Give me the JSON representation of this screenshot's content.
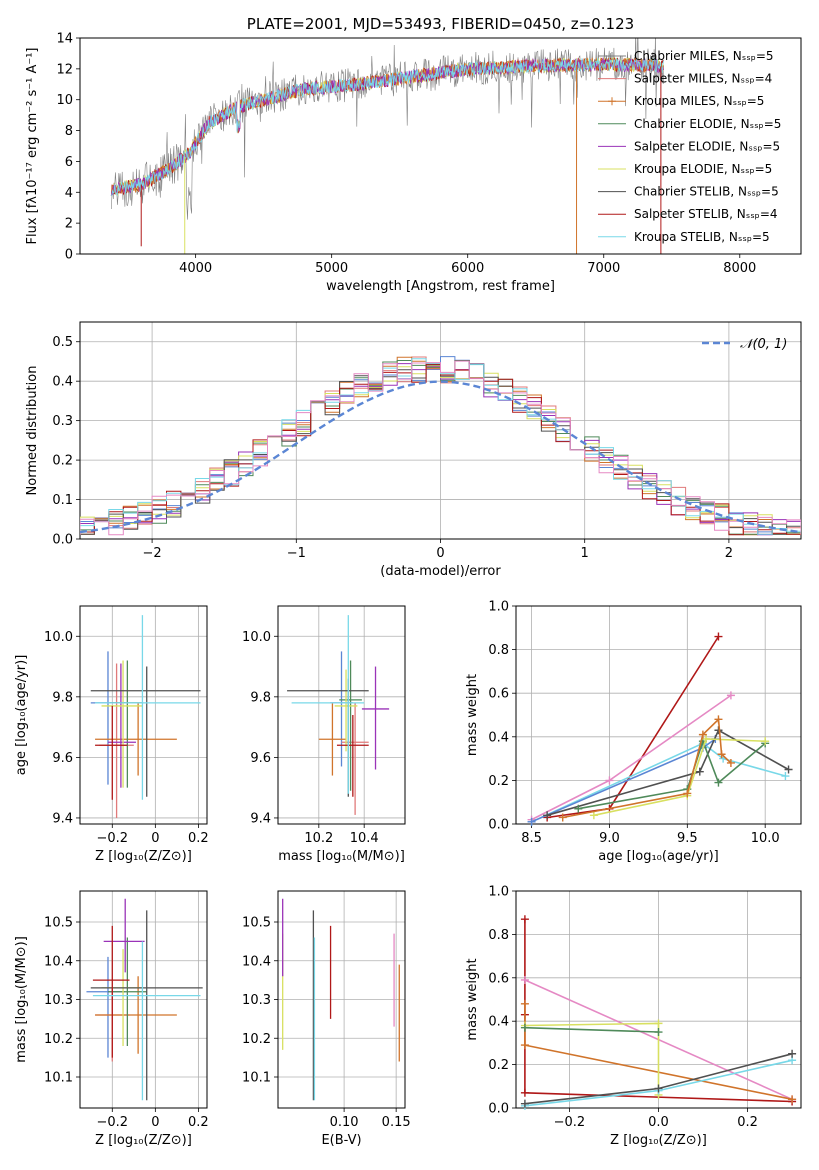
{
  "palette": {
    "chabrier_miles": "#5b86d4",
    "salpeter_miles": "#e07a7a",
    "kroupa_miles": "#d0742b",
    "chabrier_elodie": "#4f8a5a",
    "salpeter_elodie": "#9a33b8",
    "kroupa_elodie": "#d8e060",
    "chabrier_stelib": "#505050",
    "salpeter_stelib": "#b01818",
    "kroupa_stelib": "#78d8e8",
    "gray": "#808080",
    "pink": "#e589c4",
    "dashed": "#5b86d4"
  },
  "chart_data": [
    {
      "id": "spectrum",
      "type": "line",
      "title": "PLATE=2001, MJD=53493, FIBERID=0450, z=0.123",
      "xlabel": "wavelength [Angstrom, rest frame]",
      "ylabel": "Flux [fλ10⁻¹⁷ erg cm⁻² s⁻¹ A⁻¹]",
      "xlim": [
        3150,
        8450
      ],
      "ylim": [
        0,
        14
      ],
      "xticks": [
        4000,
        5000,
        6000,
        7000,
        8000
      ],
      "yticks": [
        0,
        2,
        4,
        6,
        8,
        10,
        12,
        14
      ],
      "grid": false,
      "legend_position": "right",
      "legend": [
        "Chabrier MILES, Nₛₛₚ=5",
        "Salpeter MILES, Nₛₛₚ=4",
        "Kroupa MILES, Nₛₛₚ=5",
        "Chabrier ELODIE, Nₛₛₚ=5",
        "Salpeter ELODIE, Nₛₛₚ=5",
        "Kroupa ELODIE, Nₛₛₚ=5",
        "Chabrier STELIB, Nₛₛₚ=5",
        "Salpeter STELIB, Nₛₛₚ=4",
        "Kroupa STELIB, Nₛₛₚ=5"
      ],
      "continuum_anchors": {
        "x": [
          3400,
          3600,
          3800,
          3950,
          4100,
          4300,
          4500,
          4800,
          5200,
          5600,
          6000,
          6500,
          7000,
          7400,
          7600,
          7800,
          8000,
          8200
        ],
        "y": [
          4.2,
          4.5,
          5.5,
          6.5,
          8.5,
          9.5,
          10.0,
          10.7,
          11.0,
          11.5,
          12.0,
          12.2,
          12.3,
          12.2,
          11.8,
          11.6,
          11.4,
          11.3
        ]
      }
    },
    {
      "id": "residuals",
      "type": "histogram",
      "xlabel": "(data-model)/error",
      "ylabel": "Normed distribution",
      "xlim": [
        -2.5,
        2.5
      ],
      "ylim": [
        0,
        0.55
      ],
      "xticks": [
        -2,
        -1,
        0,
        1,
        2
      ],
      "yticks": [
        0.0,
        0.1,
        0.2,
        0.3,
        0.4,
        0.5
      ],
      "grid": true,
      "legend_position": "top-right",
      "legend": [
        "𝒩(0, 1)"
      ],
      "bin_width": 0.1
    },
    {
      "id": "age-vs-Z",
      "type": "scatter",
      "xlabel": "Z [log₁₀(Z/Z⊙)]",
      "ylabel": "age  [log₁₀(age/yr)]",
      "xlim": [
        -0.35,
        0.24
      ],
      "ylim": [
        9.38,
        10.1
      ],
      "xticks": [
        -0.2,
        0.0,
        0.2
      ],
      "yticks": [
        9.4,
        9.6,
        9.8,
        10.0
      ],
      "grid": true,
      "points": [
        {
          "x": -0.22,
          "y": 9.78,
          "xerr": [
            0.08,
            0.08
          ],
          "yerr": [
            0.27,
            0.17
          ],
          "color": "chabrier_miles"
        },
        {
          "x": -0.18,
          "y": 9.64,
          "xerr": [
            0.08,
            0.08
          ],
          "yerr": [
            0.24,
            0.27
          ],
          "color": "salpeter_miles"
        },
        {
          "x": -0.08,
          "y": 9.66,
          "xerr": [
            0.2,
            0.18
          ],
          "yerr": [
            0.12,
            0.12
          ],
          "color": "kroupa_miles"
        },
        {
          "x": -0.13,
          "y": 9.78,
          "xerr": [
            0.08,
            0.07
          ],
          "yerr": [
            0.28,
            0.14
          ],
          "color": "chabrier_elodie"
        },
        {
          "x": -0.16,
          "y": 9.65,
          "xerr": [
            0.06,
            0.07
          ],
          "yerr": [
            0.15,
            0.26
          ],
          "color": "salpeter_elodie"
        },
        {
          "x": -0.15,
          "y": 9.77,
          "xerr": [
            0.1,
            0.09
          ],
          "yerr": [
            0.27,
            0.15
          ],
          "color": "kroupa_elodie"
        },
        {
          "x": -0.04,
          "y": 9.82,
          "xerr": [
            0.26,
            0.25
          ],
          "yerr": [
            0.35,
            0.08
          ],
          "color": "chabrier_stelib"
        },
        {
          "x": -0.2,
          "y": 9.64,
          "xerr": [
            0.08,
            0.07
          ],
          "yerr": [
            0.18,
            0.13
          ],
          "color": "salpeter_stelib"
        },
        {
          "x": -0.06,
          "y": 9.78,
          "xerr": [
            0.22,
            0.27
          ],
          "yerr": [
            0.32,
            0.29
          ],
          "color": "kroupa_stelib"
        }
      ]
    },
    {
      "id": "age-vs-mass",
      "type": "scatter",
      "xlabel": "mass [log₁₀(M/M⊙)]",
      "ylabel": "",
      "xlim": [
        10.02,
        10.58
      ],
      "ylim": [
        9.38,
        10.1
      ],
      "xticks": [
        10.2,
        10.4
      ],
      "yticks": [
        9.4,
        9.6,
        9.8,
        10.0
      ],
      "grid": true,
      "points": [
        {
          "x": 10.3,
          "y": 9.78,
          "xerr": [
            0.05,
            0.05
          ],
          "yerr": [
            0.21,
            0.17
          ],
          "color": "chabrier_miles"
        },
        {
          "x": 10.36,
          "y": 9.65,
          "xerr": [
            0.06,
            0.06
          ],
          "yerr": [
            0.24,
            0.13
          ],
          "color": "salpeter_miles"
        },
        {
          "x": 10.26,
          "y": 9.66,
          "xerr": [
            0.06,
            0.06
          ],
          "yerr": [
            0.12,
            0.12
          ],
          "color": "kroupa_miles"
        },
        {
          "x": 10.34,
          "y": 9.79,
          "xerr": [
            0.05,
            0.05
          ],
          "yerr": [
            0.3,
            0.13
          ],
          "color": "chabrier_elodie"
        },
        {
          "x": 10.45,
          "y": 9.76,
          "xerr": [
            0.06,
            0.06
          ],
          "yerr": [
            0.2,
            0.14
          ],
          "color": "salpeter_elodie"
        },
        {
          "x": 10.32,
          "y": 9.77,
          "xerr": [
            0.05,
            0.05
          ],
          "yerr": [
            0.15,
            0.12
          ],
          "color": "kroupa_elodie"
        },
        {
          "x": 10.33,
          "y": 9.82,
          "xerr": [
            0.27,
            0.09
          ],
          "yerr": [
            0.35,
            0.04
          ],
          "color": "chabrier_stelib"
        },
        {
          "x": 10.35,
          "y": 9.64,
          "xerr": [
            0.07,
            0.07
          ],
          "yerr": [
            0.17,
            0.1
          ],
          "color": "salpeter_stelib"
        },
        {
          "x": 10.33,
          "y": 9.78,
          "xerr": [
            0.25,
            0.07
          ],
          "yerr": [
            0.3,
            0.29
          ],
          "color": "kroupa_stelib"
        }
      ]
    },
    {
      "id": "weight-vs-age",
      "type": "line",
      "xlabel": "age  [log₁₀(age/yr)]",
      "ylabel": "mass weight",
      "xlim": [
        8.4,
        10.23
      ],
      "ylim": [
        0,
        1.0
      ],
      "xticks": [
        8.5,
        9.0,
        9.5,
        10.0
      ],
      "yticks": [
        0.0,
        0.2,
        0.4,
        0.6,
        0.8,
        1.0
      ],
      "grid": true,
      "series": [
        {
          "color": "salpeter_stelib",
          "x": [
            8.6,
            9.0,
            9.7
          ],
          "y": [
            0.03,
            0.07,
            0.86
          ]
        },
        {
          "color": "pink",
          "x": [
            8.5,
            9.0,
            9.78
          ],
          "y": [
            0.02,
            0.2,
            0.59
          ]
        },
        {
          "color": "kroupa_stelib",
          "x": [
            8.5,
            9.6,
            9.73,
            10.13
          ],
          "y": [
            0.01,
            0.37,
            0.3,
            0.22
          ]
        },
        {
          "color": "chabrier_miles",
          "x": [
            8.5,
            9.6,
            9.68
          ],
          "y": [
            0.01,
            0.35,
            0.39
          ]
        },
        {
          "color": "chabrier_stelib",
          "x": [
            8.6,
            9.58,
            9.7,
            10.15
          ],
          "y": [
            0.04,
            0.24,
            0.43,
            0.25
          ]
        },
        {
          "color": "chabrier_elodie",
          "x": [
            8.8,
            9.5,
            9.6,
            9.7,
            10.0
          ],
          "y": [
            0.07,
            0.16,
            0.38,
            0.19,
            0.37
          ]
        },
        {
          "color": "kroupa_elodie",
          "x": [
            8.9,
            9.5,
            9.62,
            10.0
          ],
          "y": [
            0.04,
            0.13,
            0.39,
            0.38
          ]
        },
        {
          "color": "kroupa_miles",
          "x": [
            8.7,
            9.5,
            9.6,
            9.7,
            9.72,
            9.78
          ],
          "y": [
            0.03,
            0.14,
            0.41,
            0.48,
            0.32,
            0.28
          ]
        }
      ]
    },
    {
      "id": "mass-vs-Z",
      "type": "scatter",
      "xlabel": "Z [log₁₀(Z/Z⊙)]",
      "ylabel": "mass [log₁₀(M/M⊙)]",
      "xlim": [
        -0.35,
        0.24
      ],
      "ylim": [
        10.02,
        10.58
      ],
      "xticks": [
        -0.2,
        0.0,
        0.2
      ],
      "yticks": [
        10.1,
        10.2,
        10.3,
        10.4,
        10.5
      ],
      "grid": true,
      "points": [
        {
          "x": -0.22,
          "y": 10.32,
          "xerr": [
            0.1,
            0.08
          ],
          "yerr": [
            0.17,
            0.09
          ],
          "color": "chabrier_miles"
        },
        {
          "x": -0.2,
          "y": 10.26,
          "xerr": [
            0.08,
            0.08
          ],
          "yerr": [
            0.12,
            0.07
          ],
          "color": "salpeter_miles"
        },
        {
          "x": -0.08,
          "y": 10.26,
          "xerr": [
            0.2,
            0.18
          ],
          "yerr": [
            0.1,
            0.1
          ],
          "color": "kroupa_miles"
        },
        {
          "x": -0.13,
          "y": 10.32,
          "xerr": [
            0.09,
            0.09
          ],
          "yerr": [
            0.14,
            0.14
          ],
          "color": "chabrier_elodie"
        },
        {
          "x": -0.14,
          "y": 10.45,
          "xerr": [
            0.1,
            0.09
          ],
          "yerr": [
            0.08,
            0.11
          ],
          "color": "salpeter_elodie"
        },
        {
          "x": -0.15,
          "y": 10.33,
          "xerr": [
            0.1,
            0.09
          ],
          "yerr": [
            0.15,
            0.1
          ],
          "color": "kroupa_elodie"
        },
        {
          "x": -0.04,
          "y": 10.33,
          "xerr": [
            0.26,
            0.26
          ],
          "yerr": [
            0.29,
            0.2
          ],
          "color": "chabrier_stelib"
        },
        {
          "x": -0.2,
          "y": 10.35,
          "xerr": [
            0.09,
            0.08
          ],
          "yerr": [
            0.2,
            0.14
          ],
          "color": "salpeter_stelib"
        },
        {
          "x": -0.06,
          "y": 10.31,
          "xerr": [
            0.23,
            0.27
          ],
          "yerr": [
            0.27,
            0.14
          ],
          "color": "kroupa_stelib"
        }
      ]
    },
    {
      "id": "mass-vs-EBV",
      "type": "scatter",
      "xlabel": "E(B-V)",
      "ylabel": "",
      "xlim": [
        0.0365,
        0.1585
      ],
      "ylim": [
        10.02,
        10.58
      ],
      "xticks": [
        0.1,
        0.15
      ],
      "yticks": [
        10.1,
        10.2,
        10.3,
        10.4,
        10.5
      ],
      "grid": true,
      "points": [
        {
          "x": 0.041,
          "y": 10.33,
          "xerr": [
            0,
            0
          ],
          "yerr": [
            0.16,
            0.14
          ],
          "color": "kroupa_elodie"
        },
        {
          "x": 0.041,
          "y": 10.45,
          "xerr": [
            0,
            0
          ],
          "yerr": [
            0.09,
            0.11
          ],
          "color": "salpeter_elodie"
        },
        {
          "x": 0.0705,
          "y": 10.33,
          "xerr": [
            0,
            0
          ],
          "yerr": [
            0.29,
            0.2
          ],
          "color": "chabrier_stelib"
        },
        {
          "x": 0.0715,
          "y": 10.32,
          "xerr": [
            0,
            0
          ],
          "yerr": [
            0.28,
            0.14
          ],
          "color": "kroupa_stelib"
        },
        {
          "x": 0.087,
          "y": 10.37,
          "xerr": [
            0,
            0
          ],
          "yerr": [
            0.12,
            0.12
          ],
          "color": "salpeter_stelib"
        },
        {
          "x": 0.148,
          "y": 10.35,
          "xerr": [
            0,
            0
          ],
          "yerr": [
            0.12,
            0.12
          ],
          "color": "pink"
        },
        {
          "x": 0.153,
          "y": 10.26,
          "xerr": [
            0,
            0
          ],
          "yerr": [
            0.12,
            0.13
          ],
          "color": "kroupa_miles"
        }
      ]
    },
    {
      "id": "weight-vs-Z",
      "type": "line",
      "xlabel": "Z [log₁₀(Z/Z⊙)]",
      "ylabel": "mass weight",
      "xlim": [
        -0.32,
        0.32
      ],
      "ylim": [
        0,
        1.0
      ],
      "xticks": [
        -0.2,
        0.0,
        0.2
      ],
      "yticks": [
        0.0,
        0.2,
        0.4,
        0.6,
        0.8,
        1.0
      ],
      "grid": true,
      "series": [
        {
          "color": "salpeter_stelib",
          "x": [
            -0.3,
            -0.3,
            -0.3,
            0.3
          ],
          "y": [
            0.87,
            0.43,
            0.07,
            0.03
          ]
        },
        {
          "color": "pink",
          "x": [
            -0.3,
            0.3
          ],
          "y": [
            0.59,
            0.04
          ]
        },
        {
          "color": "kroupa_miles",
          "x": [
            -0.3,
            -0.3,
            0.3
          ],
          "y": [
            0.48,
            0.29,
            0.04
          ]
        },
        {
          "color": "kroupa_elodie",
          "x": [
            -0.3,
            0.0,
            0.0
          ],
          "y": [
            0.38,
            0.39,
            0.06
          ]
        },
        {
          "color": "chabrier_elodie",
          "x": [
            -0.3,
            0.0
          ],
          "y": [
            0.37,
            0.35
          ]
        },
        {
          "color": "kroupa_stelib",
          "x": [
            -0.3,
            0.0,
            0.3
          ],
          "y": [
            0.01,
            0.08,
            0.22
          ]
        },
        {
          "color": "chabrier_stelib",
          "x": [
            -0.3,
            0.0,
            0.3
          ],
          "y": [
            0.02,
            0.09,
            0.25
          ]
        }
      ]
    }
  ]
}
